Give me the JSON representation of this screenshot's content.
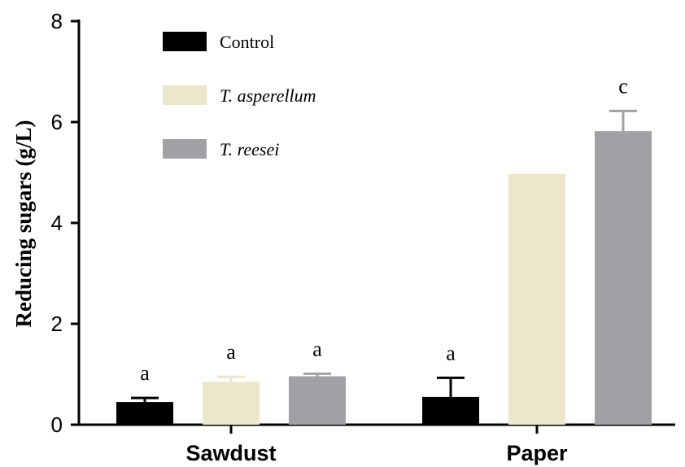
{
  "chart_data": {
    "type": "bar",
    "categories": [
      "Sawdust",
      "Paper"
    ],
    "ylabel": "Reducing sugars (g/L)",
    "xlabel": "",
    "ylim": [
      0,
      8
    ],
    "yticks": [
      0,
      2,
      4,
      6,
      8
    ],
    "legend_position": "top-left",
    "series": [
      {
        "name": "Control",
        "italic": false,
        "color": "#000000",
        "values": [
          0.45,
          0.55
        ],
        "errors": [
          0.08,
          0.38
        ],
        "significance": [
          "a",
          "a"
        ]
      },
      {
        "name": "T. asperellum",
        "italic": true,
        "color": "#ece6cc",
        "values": [
          0.85,
          4.97
        ],
        "errors": [
          0.1,
          0.0
        ],
        "significance": [
          "a",
          ""
        ]
      },
      {
        "name": "T. reesei",
        "italic": true,
        "color": "#a1a1a5",
        "values": [
          0.96,
          5.82
        ],
        "errors": [
          0.05,
          0.4
        ],
        "significance": [
          "a",
          "c"
        ]
      }
    ]
  }
}
